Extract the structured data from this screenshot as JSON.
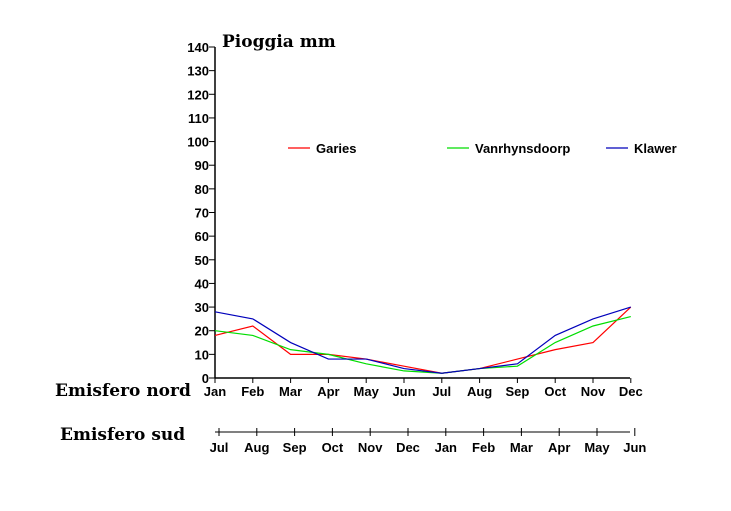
{
  "chart_data": {
    "type": "line",
    "title": "Pioggia mm",
    "ylim": [
      0,
      140
    ],
    "yticks": [
      0,
      10,
      20,
      30,
      40,
      50,
      60,
      70,
      80,
      90,
      100,
      110,
      120,
      130,
      140
    ],
    "grid": false,
    "legend_position": "top",
    "rows": [
      {
        "label": "Emisfero nord",
        "categories": [
          "Jan",
          "Feb",
          "Mar",
          "Apr",
          "May",
          "Jun",
          "Jul",
          "Aug",
          "Sep",
          "Oct",
          "Nov",
          "Dec"
        ]
      },
      {
        "label": "Emisfero sud",
        "categories": [
          "Jul",
          "Aug",
          "Sep",
          "Oct",
          "Nov",
          "Dec",
          "Jan",
          "Feb",
          "Mar",
          "Apr",
          "May",
          "Jun"
        ]
      }
    ],
    "series": [
      {
        "name": "Garies",
        "color": "#ff0000",
        "values": [
          18,
          22,
          10,
          10,
          8,
          5,
          2,
          4,
          8,
          12,
          15,
          30
        ]
      },
      {
        "name": "Vanrhynsdoorp",
        "color": "#00dd00",
        "values": [
          20,
          18,
          12,
          10,
          6,
          3,
          2,
          4,
          5,
          15,
          22,
          26
        ]
      },
      {
        "name": "Klawer",
        "color": "#0000bb",
        "values": [
          28,
          25,
          15,
          8,
          8,
          4,
          2,
          4,
          6,
          18,
          25,
          30
        ]
      }
    ]
  }
}
